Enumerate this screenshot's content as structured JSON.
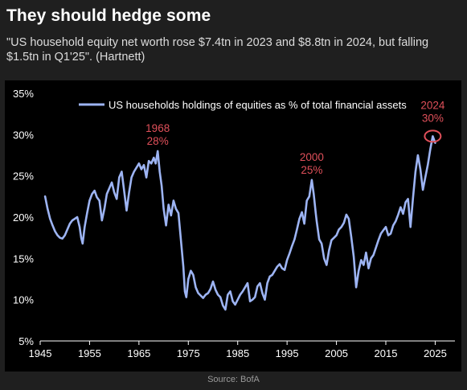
{
  "header": {
    "title": "They should hedge some",
    "subtitle": "\"US household equity net worth rose $7.4tn in 2023 and $8.8tn in 2024, but falling $1.5tn in Q1'25\". (Hartnett)"
  },
  "footer": {
    "source": "Source: BofA"
  },
  "colors": {
    "background": "#1f1f1f",
    "plot_background": "#000000",
    "line": "#9db4f3",
    "annotation": "#e0505a",
    "axis_text": "#ffffff"
  },
  "chart_data": {
    "type": "line",
    "title": "",
    "xlabel": "",
    "ylabel": "",
    "xlim": [
      1945,
      2029
    ],
    "ylim": [
      5,
      35
    ],
    "grid": false,
    "legend_position": "top-left",
    "x_ticks": [
      {
        "value": 1945,
        "label": "1945"
      },
      {
        "value": 1955,
        "label": "1955"
      },
      {
        "value": 1965,
        "label": "1965"
      },
      {
        "value": 1975,
        "label": "1975"
      },
      {
        "value": 1985,
        "label": "1985"
      },
      {
        "value": 1995,
        "label": "1995"
      },
      {
        "value": 2005,
        "label": "2005"
      },
      {
        "value": 2015,
        "label": "2015"
      },
      {
        "value": 2025,
        "label": "2025"
      }
    ],
    "y_ticks": [
      {
        "value": 5,
        "label": "5%"
      },
      {
        "value": 10,
        "label": "10%"
      },
      {
        "value": 15,
        "label": "15%"
      },
      {
        "value": 20,
        "label": "20%"
      },
      {
        "value": 25,
        "label": "25%"
      },
      {
        "value": 30,
        "label": "30%"
      },
      {
        "value": 35,
        "label": "35%"
      }
    ],
    "series": [
      {
        "name": "US households holdings of equities as % of total financial assets",
        "points": [
          [
            1946,
            22.5
          ],
          [
            1946.5,
            21.0
          ],
          [
            1947,
            19.8
          ],
          [
            1947.5,
            19.0
          ],
          [
            1948,
            18.3
          ],
          [
            1948.5,
            17.8
          ],
          [
            1949,
            17.5
          ],
          [
            1949.5,
            17.4
          ],
          [
            1950,
            17.8
          ],
          [
            1950.5,
            18.5
          ],
          [
            1951,
            19.2
          ],
          [
            1951.5,
            19.6
          ],
          [
            1952,
            19.8
          ],
          [
            1952.5,
            20.0
          ],
          [
            1953,
            18.8
          ],
          [
            1953.3,
            17.5
          ],
          [
            1953.6,
            16.8
          ],
          [
            1954,
            18.8
          ],
          [
            1954.5,
            20.5
          ],
          [
            1955,
            22.0
          ],
          [
            1955.5,
            22.8
          ],
          [
            1956,
            23.2
          ],
          [
            1956.5,
            22.4
          ],
          [
            1957,
            22.0
          ],
          [
            1957.5,
            19.6
          ],
          [
            1958,
            21.0
          ],
          [
            1958.5,
            22.8
          ],
          [
            1959,
            23.5
          ],
          [
            1959.5,
            24.2
          ],
          [
            1960,
            23.0
          ],
          [
            1960.5,
            22.2
          ],
          [
            1961,
            24.8
          ],
          [
            1961.5,
            25.5
          ],
          [
            1962,
            23.2
          ],
          [
            1962.5,
            20.8
          ],
          [
            1963,
            23.0
          ],
          [
            1963.5,
            24.8
          ],
          [
            1964,
            25.5
          ],
          [
            1964.5,
            26.0
          ],
          [
            1965,
            26.5
          ],
          [
            1965.5,
            25.8
          ],
          [
            1966,
            26.3
          ],
          [
            1966.5,
            24.8
          ],
          [
            1967,
            26.8
          ],
          [
            1967.5,
            26.5
          ],
          [
            1968,
            27.2
          ],
          [
            1968.4,
            26.5
          ],
          [
            1968.8,
            28.0
          ],
          [
            1969.2,
            25.5
          ],
          [
            1969.6,
            23.8
          ],
          [
            1970,
            21.0
          ],
          [
            1970.5,
            19.0
          ],
          [
            1971,
            21.5
          ],
          [
            1971.5,
            20.2
          ],
          [
            1972,
            22.0
          ],
          [
            1972.5,
            21.0
          ],
          [
            1973,
            20.5
          ],
          [
            1973.5,
            17.2
          ],
          [
            1974,
            14.0
          ],
          [
            1974.3,
            11.0
          ],
          [
            1974.6,
            10.3
          ],
          [
            1975,
            12.5
          ],
          [
            1975.5,
            13.5
          ],
          [
            1976,
            13.0
          ],
          [
            1976.5,
            11.5
          ],
          [
            1977,
            10.8
          ],
          [
            1977.5,
            10.5
          ],
          [
            1978,
            10.2
          ],
          [
            1978.5,
            10.6
          ],
          [
            1979,
            10.8
          ],
          [
            1979.5,
            11.3
          ],
          [
            1980,
            12.2
          ],
          [
            1980.5,
            11.2
          ],
          [
            1981,
            10.6
          ],
          [
            1981.5,
            10.3
          ],
          [
            1982,
            9.3
          ],
          [
            1982.5,
            8.8
          ],
          [
            1983,
            10.6
          ],
          [
            1983.5,
            11.0
          ],
          [
            1984,
            9.8
          ],
          [
            1984.5,
            9.4
          ],
          [
            1985,
            10.0
          ],
          [
            1985.5,
            10.6
          ],
          [
            1986,
            11.0
          ],
          [
            1986.5,
            11.5
          ],
          [
            1987,
            12.0
          ],
          [
            1987.5,
            9.8
          ],
          [
            1988,
            10.0
          ],
          [
            1988.5,
            10.3
          ],
          [
            1989,
            11.6
          ],
          [
            1989.5,
            12.0
          ],
          [
            1990,
            10.8
          ],
          [
            1990.5,
            10.0
          ],
          [
            1991,
            12.0
          ],
          [
            1991.5,
            12.8
          ],
          [
            1992,
            13.0
          ],
          [
            1992.5,
            13.5
          ],
          [
            1993,
            14.0
          ],
          [
            1993.5,
            14.3
          ],
          [
            1994,
            13.8
          ],
          [
            1994.5,
            13.6
          ],
          [
            1995,
            14.8
          ],
          [
            1995.5,
            15.6
          ],
          [
            1996,
            16.5
          ],
          [
            1996.5,
            17.3
          ],
          [
            1997,
            18.5
          ],
          [
            1997.5,
            19.8
          ],
          [
            1998,
            20.6
          ],
          [
            1998.5,
            19.2
          ],
          [
            1999,
            22.0
          ],
          [
            1999.5,
            22.5
          ],
          [
            2000,
            24.5
          ],
          [
            2000.4,
            22.8
          ],
          [
            2000.8,
            20.5
          ],
          [
            2001,
            19.5
          ],
          [
            2001.5,
            17.3
          ],
          [
            2002,
            16.8
          ],
          [
            2002.5,
            15.0
          ],
          [
            2003,
            14.2
          ],
          [
            2003.5,
            16.0
          ],
          [
            2004,
            17.2
          ],
          [
            2004.5,
            17.5
          ],
          [
            2005,
            17.8
          ],
          [
            2005.5,
            18.5
          ],
          [
            2006,
            18.8
          ],
          [
            2006.5,
            19.3
          ],
          [
            2007,
            20.3
          ],
          [
            2007.5,
            19.8
          ],
          [
            2008,
            17.6
          ],
          [
            2008.5,
            15.2
          ],
          [
            2009,
            11.5
          ],
          [
            2009.5,
            13.5
          ],
          [
            2010,
            14.8
          ],
          [
            2010.5,
            14.2
          ],
          [
            2011,
            15.7
          ],
          [
            2011.5,
            13.8
          ],
          [
            2012,
            15.0
          ],
          [
            2012.5,
            15.4
          ],
          [
            2013,
            16.3
          ],
          [
            2013.5,
            17.2
          ],
          [
            2014,
            18.0
          ],
          [
            2014.5,
            18.4
          ],
          [
            2015,
            18.8
          ],
          [
            2015.5,
            17.8
          ],
          [
            2016,
            18.0
          ],
          [
            2016.5,
            19.0
          ],
          [
            2017,
            19.5
          ],
          [
            2017.5,
            20.3
          ],
          [
            2018,
            21.2
          ],
          [
            2018.5,
            20.4
          ],
          [
            2019,
            21.8
          ],
          [
            2019.5,
            22.2
          ],
          [
            2020,
            18.8
          ],
          [
            2020.5,
            22.3
          ],
          [
            2021,
            25.5
          ],
          [
            2021.5,
            27.5
          ],
          [
            2022,
            25.8
          ],
          [
            2022.5,
            23.3
          ],
          [
            2023,
            24.8
          ],
          [
            2023.5,
            26.3
          ],
          [
            2024,
            28.2
          ],
          [
            2024.5,
            29.8
          ],
          [
            2025,
            29.0
          ]
        ]
      }
    ],
    "annotations": [
      {
        "id": "1968",
        "year_label": "1968",
        "value_label": "28%",
        "x": 1968.8,
        "y": 28.0,
        "circle": false
      },
      {
        "id": "2000",
        "year_label": "2000",
        "value_label": "25%",
        "x": 2000,
        "y": 24.5,
        "circle": false
      },
      {
        "id": "2024",
        "year_label": "2024",
        "value_label": "30%",
        "x": 2024.5,
        "y": 29.8,
        "circle": true
      }
    ]
  }
}
